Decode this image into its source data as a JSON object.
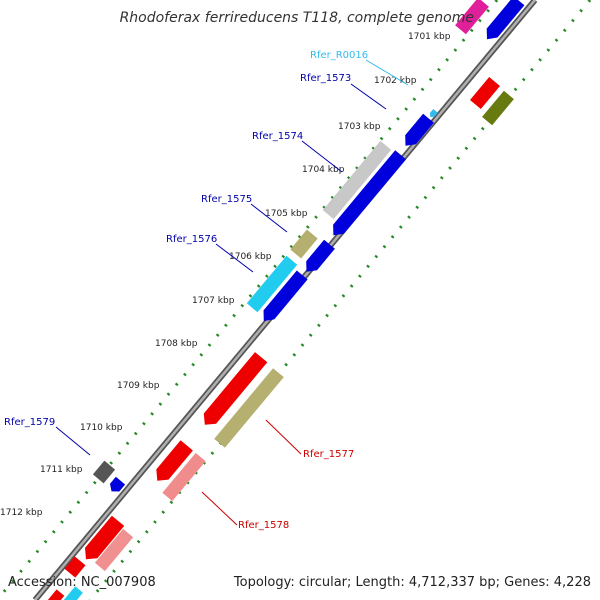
{
  "title": "Rhodoferax ferrireducens T118, complete genome",
  "footer": {
    "accession": "Accession: NC_007908",
    "summary": "Topology: circular; Length: 4,712,337 bp; Genes: 4,228"
  },
  "colors": {
    "backbone": "#888888",
    "ticks": "#2a8a2a",
    "label_blue": "#0000aa",
    "label_cyan": "#33bbee",
    "label_red": "#cc0000"
  },
  "ticks": [
    "1701 kbp",
    "1702 kbp",
    "1703 kbp",
    "1704 kbp",
    "1705 kbp",
    "1706 kbp",
    "1707 kbp",
    "1708 kbp",
    "1709 kbp",
    "1710 kbp",
    "1711 kbp",
    "1712 kbp"
  ],
  "gene_labels": [
    "Rfer_R0016",
    "Rfer_1573",
    "Rfer_1574",
    "Rfer_1575",
    "Rfer_1576",
    "Rfer_1579",
    "Rfer_1577",
    "Rfer_1578"
  ]
}
